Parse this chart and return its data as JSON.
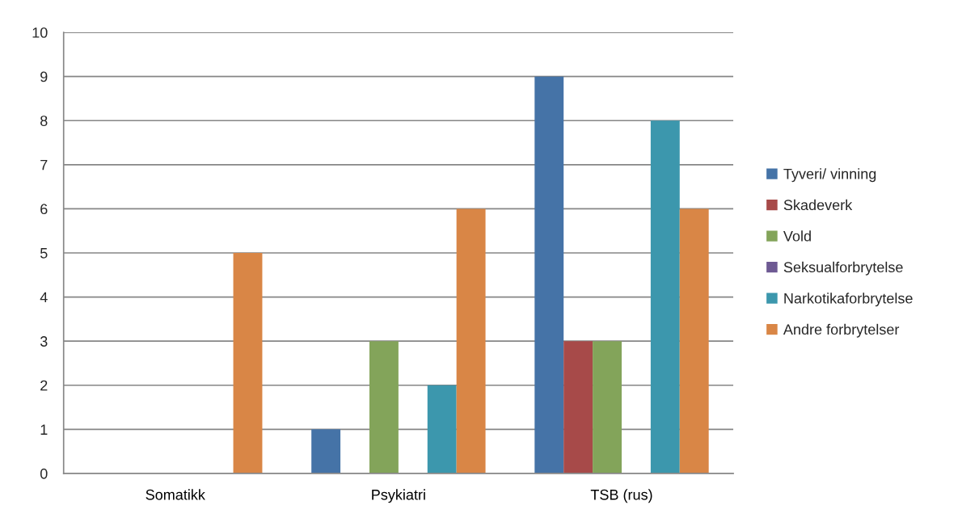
{
  "chart_data": {
    "type": "bar",
    "categories": [
      "Somatikk",
      "Psykiatri",
      "TSB (rus)"
    ],
    "series": [
      {
        "name": "Tyveri/ vinning",
        "color": "#4573a7",
        "values": [
          0,
          1,
          9
        ]
      },
      {
        "name": "Skadeverk",
        "color": "#a74a49",
        "values": [
          0,
          0,
          3
        ]
      },
      {
        "name": "Vold",
        "color": "#83a45a",
        "values": [
          0,
          3,
          3
        ]
      },
      {
        "name": "Seksualforbrytelse",
        "color": "#6e5a93",
        "values": [
          0,
          0,
          0
        ]
      },
      {
        "name": "Narkotikaforbrytelse",
        "color": "#3c97ad",
        "values": [
          0,
          2,
          8
        ]
      },
      {
        "name": "Andre forbrytelser",
        "color": "#d98646",
        "values": [
          5,
          6,
          6
        ]
      }
    ],
    "ylim": [
      0,
      10
    ],
    "yticks": [
      0,
      1,
      2,
      3,
      4,
      5,
      6,
      7,
      8,
      9,
      10
    ],
    "grid": "y",
    "legend": "right"
  }
}
